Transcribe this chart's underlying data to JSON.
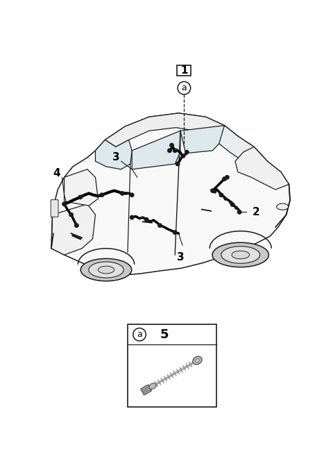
{
  "bg_color": "#ffffff",
  "line_color": "#1a1a1a",
  "wiring_color": "#000000",
  "label_1": "1",
  "label_2": "2",
  "label_3": "3",
  "label_4": "4",
  "label_5": "5",
  "label_a": "a",
  "fig_width": 4.8,
  "fig_height": 6.84,
  "dpi": 100,
  "car_face": "#f8f8f8",
  "car_edge": "#1a1a1a",
  "wheel_face": "#d0d0d0",
  "wheel_inner": "#e8e8e8"
}
